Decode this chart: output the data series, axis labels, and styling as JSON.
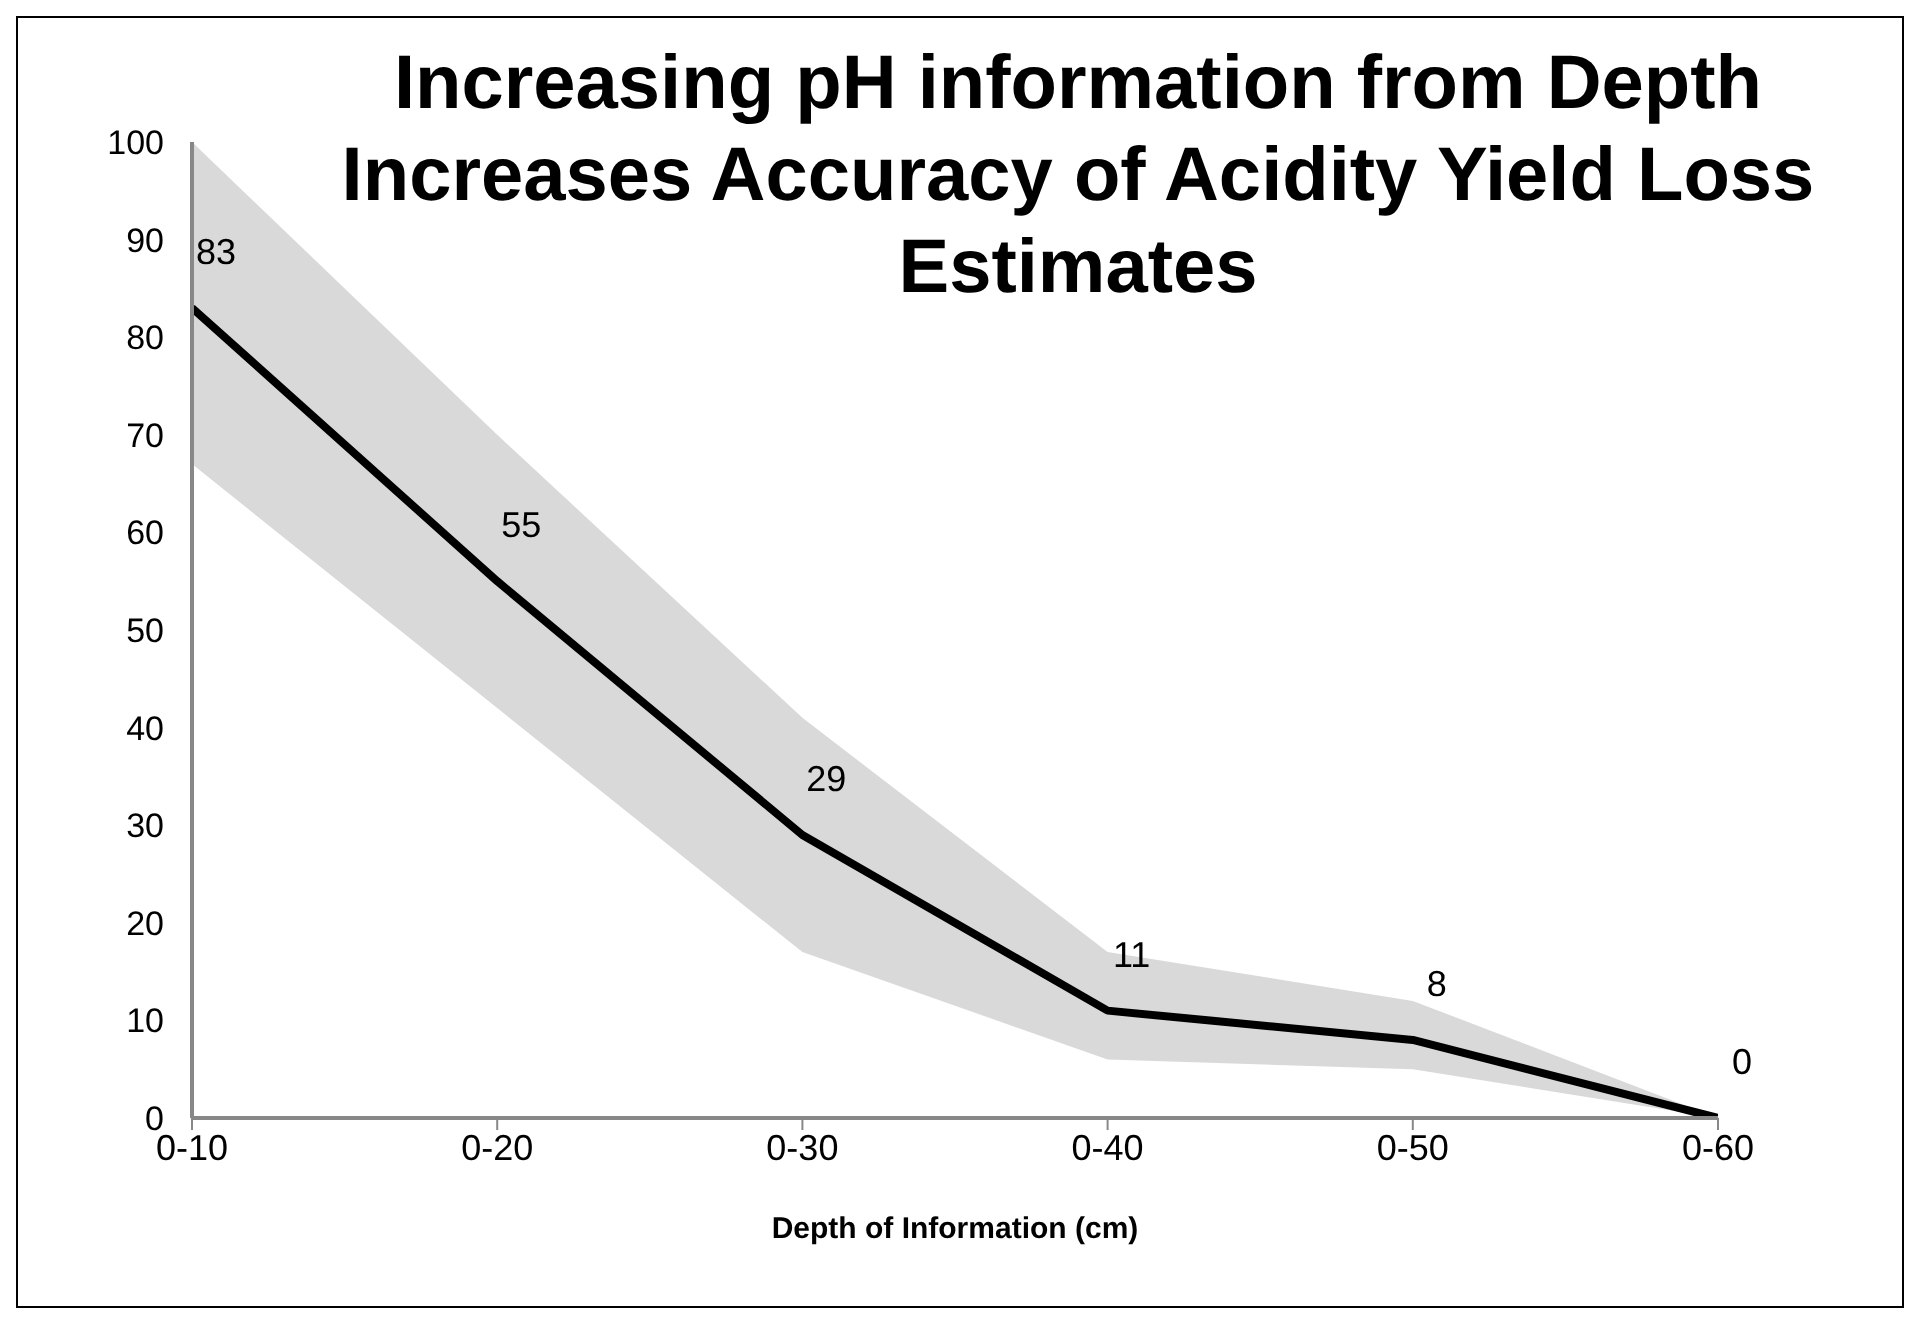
{
  "chart_data": {
    "type": "line",
    "title": "Increasing pH information from Depth Increases Accuracy of Acidity Yield Loss Estimates",
    "xlabel": "Depth of Information (cm)",
    "categories": [
      "0-10",
      "0-20",
      "0-30",
      "0-40",
      "0-50",
      "0-60"
    ],
    "series": [
      {
        "color": "#000000",
        "values": [
          83,
          55,
          29,
          11,
          8,
          0
        ],
        "lower": [
          67,
          42,
          17,
          6,
          5,
          0
        ],
        "upper": [
          100,
          70,
          41,
          17,
          12,
          0
        ]
      }
    ],
    "ylim": [
      0,
      100
    ],
    "yticks": [
      0,
      10,
      20,
      30,
      40,
      50,
      60,
      70,
      80,
      90,
      100
    ],
    "marker": "none",
    "line_style": "solid",
    "data_labels": true
  }
}
